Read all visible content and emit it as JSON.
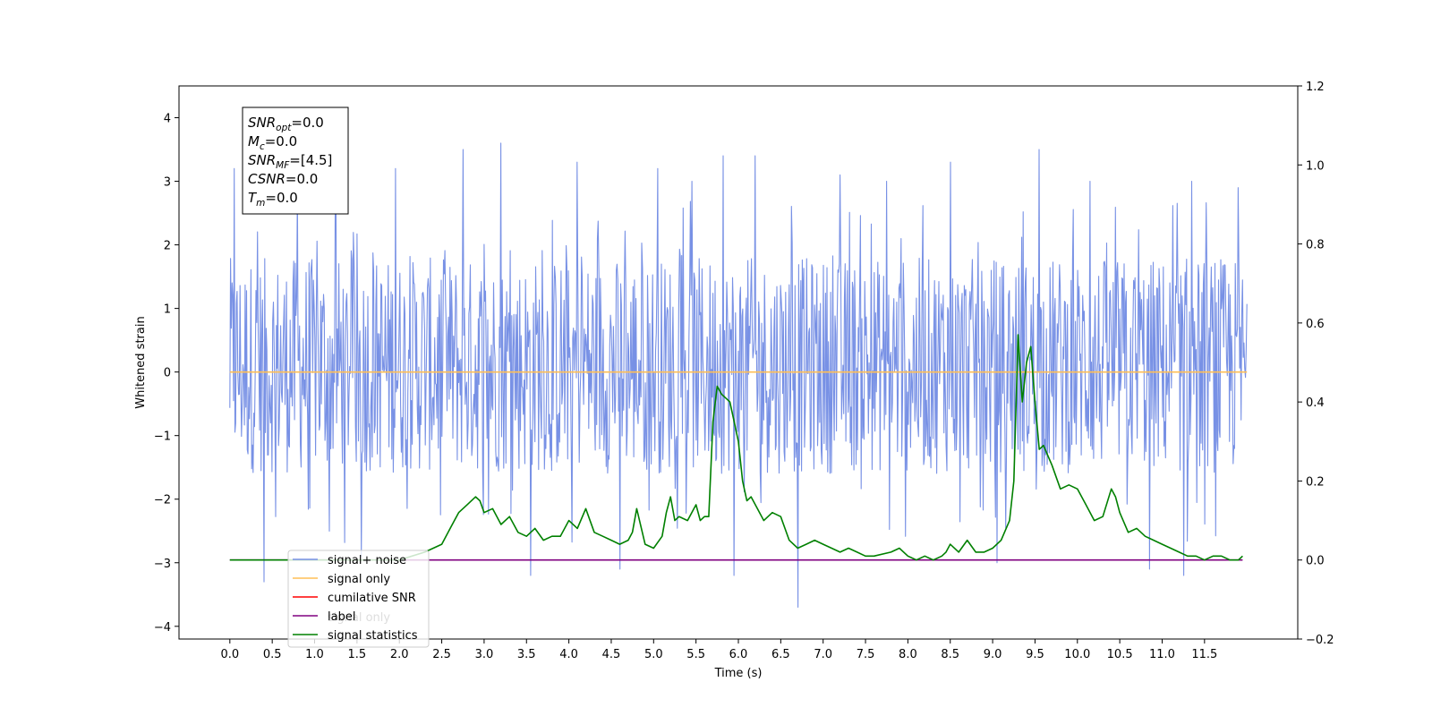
{
  "chart_data": {
    "type": "line",
    "xlabel": "Time (s)",
    "ylabel": "Whitened strain",
    "xlim": [
      -0.6,
      12.6
    ],
    "ylim": [
      -4.2,
      4.5
    ],
    "y2lim": [
      -0.2,
      1.2
    ],
    "x_ticks": [
      "0.0",
      "0.5",
      "1.0",
      "1.5",
      "2.0",
      "2.5",
      "3.0",
      "3.5",
      "4.0",
      "4.5",
      "5.0",
      "5.5",
      "6.0",
      "6.5",
      "7.0",
      "7.5",
      "8.0",
      "8.5",
      "9.0",
      "9.5",
      "10.0",
      "10.5",
      "11.0",
      "11.5"
    ],
    "y_ticks": [
      "4",
      "3",
      "2",
      "1",
      "0",
      "−1",
      "−2",
      "−3",
      "−4"
    ],
    "y2_ticks": [
      "1.2",
      "1.0",
      "0.8",
      "0.6",
      "0.4",
      "0.2",
      "0.0",
      "−0.2"
    ],
    "annotation": [
      {
        "base": "SNR",
        "sub": "opt",
        "value": "=0.0"
      },
      {
        "base": "M",
        "sub": "c",
        "value": "=0.0"
      },
      {
        "base": "SNR",
        "sub": "MF",
        "value": "=[4.5]"
      },
      {
        "base": "CSNR",
        "sub": "",
        "value": "=0.0"
      },
      {
        "base": "T",
        "sub": "m",
        "value": "=0.0"
      }
    ],
    "legend": [
      {
        "label": "signal+ noise",
        "color": "#7891e5"
      },
      {
        "label": "signal only",
        "color": "#ffbf56"
      },
      {
        "label": "cumilative SNR",
        "color": "#ff0000"
      },
      {
        "label": "label",
        "color": "#800080"
      },
      {
        "label": "signal statistics",
        "color": "#008000"
      }
    ],
    "hidden_legend_text": "signal only",
    "legend_placement": "lower-left",
    "grid": false,
    "series": [
      {
        "name": "signal+ noise",
        "axis": "left",
        "kind": "noise",
        "color": "#7891e5",
        "x_range": [
          0.0,
          12.0
        ],
        "typical_range": [
          -1.6,
          1.8
        ],
        "peaks": [
          {
            "x": 0.05,
            "y": 3.2
          },
          {
            "x": 0.4,
            "y": -3.3
          },
          {
            "x": 0.8,
            "y": 2.9
          },
          {
            "x": 1.25,
            "y": 3.3
          },
          {
            "x": 1.55,
            "y": -2.9
          },
          {
            "x": 1.95,
            "y": 3.2
          },
          {
            "x": 2.75,
            "y": 3.5
          },
          {
            "x": 3.2,
            "y": 3.6
          },
          {
            "x": 3.55,
            "y": -3.2
          },
          {
            "x": 4.1,
            "y": 3.3
          },
          {
            "x": 4.6,
            "y": -3.1
          },
          {
            "x": 5.05,
            "y": 3.2
          },
          {
            "x": 5.45,
            "y": 3.0
          },
          {
            "x": 5.95,
            "y": -3.2
          },
          {
            "x": 5.82,
            "y": 3.4
          },
          {
            "x": 6.2,
            "y": 3.4
          },
          {
            "x": 6.7,
            "y": -3.7
          },
          {
            "x": 7.2,
            "y": 3.1
          },
          {
            "x": 7.75,
            "y": 3.0
          },
          {
            "x": 8.5,
            "y": 3.3
          },
          {
            "x": 9.05,
            "y": -3.0
          },
          {
            "x": 9.55,
            "y": 3.5
          },
          {
            "x": 10.15,
            "y": 3.0
          },
          {
            "x": 10.85,
            "y": -3.1
          },
          {
            "x": 11.25,
            "y": -3.2
          },
          {
            "x": 11.35,
            "y": 3.0
          },
          {
            "x": 11.9,
            "y": 2.9
          }
        ]
      },
      {
        "name": "signal only",
        "axis": "left",
        "color": "#ffbf56",
        "x": [
          0.0,
          12.0
        ],
        "y": [
          0.0,
          0.0
        ]
      },
      {
        "name": "label",
        "axis": "right",
        "color": "#800080",
        "x": [
          0.0,
          11.95
        ],
        "y": [
          0.0,
          0.0
        ]
      },
      {
        "name": "signal statistics",
        "axis": "right",
        "color": "#008000",
        "x": [
          0.0,
          0.5,
          1.0,
          1.5,
          2.0,
          2.3,
          2.5,
          2.6,
          2.7,
          2.8,
          2.9,
          2.95,
          3.0,
          3.1,
          3.2,
          3.3,
          3.4,
          3.5,
          3.6,
          3.7,
          3.8,
          3.9,
          4.0,
          4.1,
          4.2,
          4.3,
          4.4,
          4.5,
          4.6,
          4.7,
          4.75,
          4.8,
          4.9,
          5.0,
          5.1,
          5.15,
          5.2,
          5.25,
          5.3,
          5.4,
          5.5,
          5.55,
          5.6,
          5.65,
          5.7,
          5.75,
          5.8,
          5.9,
          5.95,
          6.0,
          6.05,
          6.1,
          6.15,
          6.2,
          6.3,
          6.4,
          6.5,
          6.6,
          6.7,
          6.8,
          6.9,
          7.0,
          7.1,
          7.2,
          7.3,
          7.4,
          7.5,
          7.6,
          7.8,
          7.9,
          8.0,
          8.1,
          8.2,
          8.3,
          8.4,
          8.45,
          8.5,
          8.6,
          8.7,
          8.8,
          8.9,
          9.0,
          9.1,
          9.2,
          9.25,
          9.3,
          9.35,
          9.4,
          9.45,
          9.5,
          9.55,
          9.6,
          9.7,
          9.8,
          9.9,
          10.0,
          10.1,
          10.2,
          10.3,
          10.4,
          10.45,
          10.5,
          10.6,
          10.7,
          10.8,
          10.9,
          11.0,
          11.1,
          11.2,
          11.3,
          11.4,
          11.5,
          11.6,
          11.7,
          11.8,
          11.9,
          11.95
        ],
        "y": [
          0.0,
          0.0,
          0.0,
          0.0,
          0.0,
          0.02,
          0.04,
          0.08,
          0.12,
          0.14,
          0.16,
          0.15,
          0.12,
          0.13,
          0.09,
          0.11,
          0.07,
          0.06,
          0.08,
          0.05,
          0.06,
          0.06,
          0.1,
          0.08,
          0.13,
          0.07,
          0.06,
          0.05,
          0.04,
          0.05,
          0.07,
          0.13,
          0.04,
          0.03,
          0.06,
          0.12,
          0.16,
          0.1,
          0.11,
          0.1,
          0.14,
          0.1,
          0.11,
          0.11,
          0.35,
          0.44,
          0.42,
          0.4,
          0.35,
          0.3,
          0.2,
          0.15,
          0.16,
          0.14,
          0.1,
          0.12,
          0.11,
          0.05,
          0.03,
          0.04,
          0.05,
          0.04,
          0.03,
          0.02,
          0.03,
          0.02,
          0.01,
          0.01,
          0.02,
          0.03,
          0.01,
          0.0,
          0.01,
          0.0,
          0.01,
          0.02,
          0.04,
          0.02,
          0.05,
          0.02,
          0.02,
          0.03,
          0.05,
          0.1,
          0.2,
          0.57,
          0.4,
          0.5,
          0.54,
          0.4,
          0.28,
          0.29,
          0.24,
          0.18,
          0.19,
          0.18,
          0.14,
          0.1,
          0.11,
          0.18,
          0.16,
          0.12,
          0.07,
          0.08,
          0.06,
          0.05,
          0.04,
          0.03,
          0.02,
          0.01,
          0.01,
          0.0,
          0.01,
          0.01,
          0.0,
          0.0,
          0.01
        ]
      }
    ]
  }
}
